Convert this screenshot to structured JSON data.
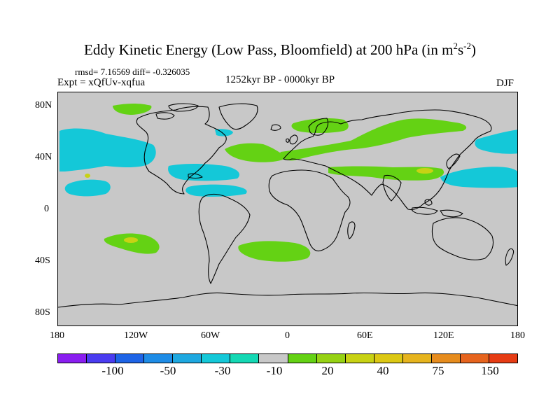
{
  "title": {
    "main": "Eddy Kinetic Energy (Low Pass, Bloomfield) at 200 hPa (in m",
    "sup1": "2",
    "mid": "s",
    "sup2": "-2",
    "close": ")"
  },
  "stats": "rmsd= 7.16569 diff= -0.326035",
  "experiment": "Expt = xQfUv-xqfua",
  "period": "1252kyr BP - 0000kyr BP",
  "season": "DJF",
  "map": {
    "background_color": "#c8c8c8",
    "lat_ticks": [
      "80N",
      "40N",
      "0",
      "40S",
      "80S"
    ],
    "lon_ticks": [
      "180",
      "120W",
      "60W",
      "0",
      "60E",
      "120E",
      "180"
    ],
    "lat_values": [
      80,
      40,
      0,
      -40,
      -80
    ],
    "lon_values": [
      -180,
      -120,
      -60,
      0,
      60,
      120,
      180
    ]
  },
  "colorbar": {
    "colors": [
      "#8a1ef0",
      "#4a3cf0",
      "#1e64e6",
      "#1e8ce6",
      "#1ea8e0",
      "#14c8d8",
      "#14d8b4",
      "#c8c8c8",
      "#64d214",
      "#96d214",
      "#c8d214",
      "#dcc814",
      "#e6b41e",
      "#e68c1e",
      "#e6641e",
      "#e63c14"
    ],
    "labels": [
      "-100",
      "-50",
      "-30",
      "-10",
      "20",
      "40",
      "75",
      "150"
    ]
  },
  "legend_colors": {
    "green": "#64d214",
    "cyan": "#14c8d8",
    "teal": "#14d8b4",
    "yellow": "#c8d214"
  }
}
